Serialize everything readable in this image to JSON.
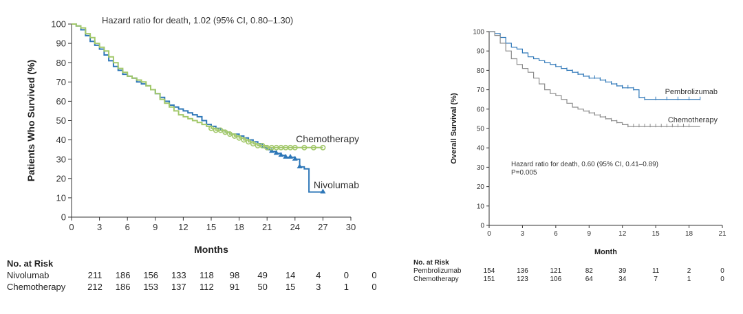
{
  "chart_data": [
    {
      "type": "line",
      "subtype": "kaplan-meier",
      "title": "",
      "annotation": "Hazard ratio for death, 1.02 (95% CI, 0.80–1.30)",
      "xlabel": "Months",
      "ylabel": "Patients Who Survived (%)",
      "xlim": [
        0,
        30
      ],
      "ylim": [
        0,
        100
      ],
      "xticks": [
        "0",
        "3",
        "6",
        "9",
        "12",
        "15",
        "18",
        "21",
        "24",
        "27",
        "30"
      ],
      "yticks": [
        "0",
        "10",
        "20",
        "30",
        "40",
        "50",
        "60",
        "70",
        "80",
        "90",
        "100"
      ],
      "grid": false,
      "series": [
        {
          "name": "Nivolumab",
          "color": "#2e77b8",
          "marker": "triangle",
          "x": [
            0,
            0.5,
            1,
            1.5,
            2,
            2.5,
            3,
            3.5,
            4,
            4.5,
            5,
            5.5,
            6,
            6.5,
            7,
            7.5,
            8,
            8.5,
            9,
            9.5,
            10,
            10.5,
            11,
            11.5,
            12,
            12.5,
            13,
            13.5,
            14,
            14.5,
            15,
            15.5,
            16,
            16.5,
            17,
            17.5,
            18,
            18.5,
            19,
            19.5,
            20,
            20.5,
            21,
            21.5,
            22,
            22.5,
            23,
            23.5,
            24,
            24.5,
            25,
            25.5,
            26,
            26.5,
            27
          ],
          "values": [
            100,
            99,
            97,
            94,
            91,
            89,
            87,
            84,
            81,
            78,
            76,
            74,
            73,
            72,
            70,
            69,
            68,
            66,
            64,
            62,
            60,
            58,
            57,
            56,
            55,
            54,
            53,
            52,
            50,
            48,
            47,
            46,
            45,
            44,
            43,
            43,
            42,
            41,
            40,
            39,
            38,
            36,
            35,
            34,
            33,
            32,
            31,
            31,
            30,
            26,
            25,
            13,
            13,
            13,
            13
          ],
          "censor_x": [
            21.5,
            22,
            22.5,
            23,
            23.5,
            24,
            24.5,
            27
          ],
          "end_label": "Nivolumab"
        },
        {
          "name": "Chemotherapy",
          "color": "#a2c86a",
          "marker": "circle",
          "x": [
            0,
            0.5,
            1,
            1.5,
            2,
            2.5,
            3,
            3.5,
            4,
            4.5,
            5,
            5.5,
            6,
            6.5,
            7,
            7.5,
            8,
            8.5,
            9,
            9.5,
            10,
            10.5,
            11,
            11.5,
            12,
            12.5,
            13,
            13.5,
            14,
            14.5,
            15,
            15.5,
            16,
            16.5,
            17,
            17.5,
            18,
            18.5,
            19,
            19.5,
            20,
            20.5,
            21,
            21.5,
            22,
            22.5,
            23,
            23.5,
            24,
            24.5,
            25,
            25.5,
            26,
            26.5,
            27
          ],
          "values": [
            100,
            99,
            98,
            95,
            93,
            90,
            88,
            86,
            83,
            80,
            77,
            75,
            73,
            72,
            71,
            70,
            68,
            66,
            64,
            61,
            59,
            57,
            55,
            53,
            52,
            51,
            50,
            49,
            48,
            47,
            46,
            45,
            45,
            44,
            43,
            42,
            41,
            40,
            39,
            38,
            37,
            37,
            36,
            36,
            36,
            36,
            36,
            36,
            36,
            36,
            36,
            36,
            36,
            36,
            36
          ],
          "censor_x": [
            15,
            15.5,
            16,
            16.5,
            17,
            17.5,
            18,
            18.5,
            19,
            19.5,
            20,
            20.5,
            21,
            21.5,
            22,
            22.5,
            23,
            23.5,
            24,
            25,
            26,
            27
          ],
          "end_label": "Chemotherapy"
        }
      ],
      "risk_table": {
        "title": "No. at Risk",
        "rows": [
          {
            "label": "Nivolumab",
            "values": [
              "211",
              "186",
              "156",
              "133",
              "118",
              "98",
              "49",
              "14",
              "4",
              "0",
              "0"
            ]
          },
          {
            "label": "Chemotherapy",
            "values": [
              "212",
              "186",
              "153",
              "137",
              "112",
              "91",
              "50",
              "15",
              "3",
              "1",
              "0"
            ]
          }
        ]
      }
    },
    {
      "type": "line",
      "subtype": "kaplan-meier",
      "title": "",
      "annotation": "Hazard ratio for death, 0.60 (95% CI, 0.41–0.89)",
      "annotation2": "P=0.005",
      "xlabel": "Month",
      "ylabel": "Overall Survival (%)",
      "xlim": [
        0,
        21
      ],
      "ylim": [
        0,
        100
      ],
      "xticks": [
        "0",
        "3",
        "6",
        "9",
        "12",
        "15",
        "18",
        "21"
      ],
      "yticks": [
        "0",
        "10",
        "20",
        "30",
        "40",
        "50",
        "60",
        "70",
        "80",
        "90",
        "100"
      ],
      "grid": false,
      "series": [
        {
          "name": "Pembrolizumab",
          "color": "#2e77b8",
          "marker": "tick",
          "x": [
            0,
            0.5,
            1,
            1.5,
            2,
            2.5,
            3,
            3.5,
            4,
            4.5,
            5,
            5.5,
            6,
            6.5,
            7,
            7.5,
            8,
            8.5,
            9,
            9.5,
            10,
            10.5,
            11,
            11.5,
            12,
            12.5,
            13,
            13.5,
            14,
            14.5,
            15,
            15.5,
            16,
            16.5,
            17,
            17.5,
            18,
            18.5,
            19
          ],
          "values": [
            100,
            99,
            97,
            94,
            92,
            91,
            89,
            87,
            86,
            85,
            84,
            83,
            82,
            81,
            80,
            79,
            78,
            77,
            76,
            76,
            75,
            74,
            73,
            72,
            71,
            71,
            70,
            66,
            65,
            65,
            65,
            65,
            65,
            65,
            65,
            65,
            65,
            65,
            65
          ],
          "censor_x": [
            6,
            6.5,
            7,
            7.5,
            8,
            8.5,
            9,
            9.5,
            10,
            10.5,
            11,
            11.5,
            12,
            12.5,
            13,
            13.5,
            14,
            15,
            16,
            17,
            18,
            19
          ],
          "end_label": "Pembrolizumab"
        },
        {
          "name": "Chemotherapy",
          "color": "#8c8c8c",
          "marker": "tick",
          "x": [
            0,
            0.5,
            1,
            1.5,
            2,
            2.5,
            3,
            3.5,
            4,
            4.5,
            5,
            5.5,
            6,
            6.5,
            7,
            7.5,
            8,
            8.5,
            9,
            9.5,
            10,
            10.5,
            11,
            11.5,
            12,
            12.5,
            13,
            13.5,
            14,
            14.5,
            15,
            15.5,
            16,
            16.5,
            17,
            17.5,
            18,
            18.5,
            19
          ],
          "values": [
            100,
            98,
            94,
            90,
            86,
            83,
            81,
            79,
            76,
            73,
            70,
            68,
            67,
            65,
            63,
            61,
            60,
            59,
            58,
            57,
            56,
            55,
            54,
            53,
            52,
            51,
            51,
            51,
            51,
            51,
            51,
            51,
            51,
            51,
            51,
            51,
            51,
            51,
            51
          ],
          "censor_x": [
            9,
            9.5,
            10,
            10.5,
            11,
            11.5,
            12.5,
            13,
            13.5,
            14,
            14.5,
            15,
            15.5,
            16,
            16.5,
            17,
            17.5,
            18
          ],
          "end_label": "Chemotherapy"
        }
      ],
      "risk_table": {
        "title": "No. at Risk",
        "rows": [
          {
            "label": "Pembrolizumab",
            "values": [
              "154",
              "136",
              "121",
              "82",
              "39",
              "11",
              "2",
              "0"
            ]
          },
          {
            "label": "Chemotherapy",
            "values": [
              "151",
              "123",
              "106",
              "64",
              "34",
              "7",
              "1",
              "0"
            ]
          }
        ]
      }
    }
  ]
}
